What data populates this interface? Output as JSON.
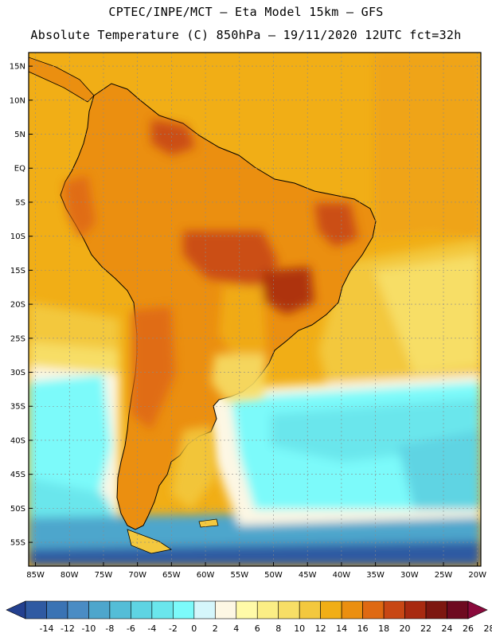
{
  "title": {
    "line1": "CPTEC/INPE/MCT –  Eta Model 15km – GFS",
    "line2": "Absolute Temperature (C) 850hPa – 19/11/2020 12UTC fct=32h"
  },
  "map": {
    "lon_range": [
      -86,
      -19.5
    ],
    "lat_range": [
      -58.5,
      17
    ],
    "lat_ticks": [
      "15N",
      "10N",
      "5N",
      "EQ",
      "5S",
      "10S",
      "15S",
      "20S",
      "25S",
      "30S",
      "35S",
      "40S",
      "45S",
      "50S",
      "55S"
    ],
    "lon_ticks": [
      "85W",
      "80W",
      "75W",
      "70W",
      "65W",
      "60W",
      "55W",
      "50W",
      "45W",
      "40W",
      "35W",
      "30W",
      "25W",
      "20W"
    ]
  },
  "colorbar": {
    "labels": [
      "-14",
      "-12",
      "-10",
      "-8",
      "-6",
      "-4",
      "-2",
      "0",
      "2",
      "4",
      "6",
      "8",
      "10",
      "12",
      "14",
      "16",
      "18",
      "20",
      "22",
      "24",
      "26",
      "28"
    ],
    "colors": [
      "#23408f",
      "#2f5aa2",
      "#3a73b4",
      "#4a8cc4",
      "#4ea6cc",
      "#54bdd7",
      "#5ed4e3",
      "#6ae6ec",
      "#7cfafa",
      "#d5f6fb",
      "#fdf7e4",
      "#fffaa8",
      "#fbee85",
      "#f7de66",
      "#f3c83e",
      "#f1ae16",
      "#eb8f10",
      "#df6912",
      "#c84714",
      "#a82a10",
      "#7d1710",
      "#6e0a20",
      "#8a0a3c"
    ],
    "units": "C"
  },
  "fields": {
    "ocean_colors": [
      "#f1ae16",
      "#f3c83e",
      "#f7de66",
      "#fdf7e4",
      "#7cfafa",
      "#6ae6ec",
      "#4ea6cc",
      "#2f5aa2"
    ],
    "land_colors": [
      "#f1ae16",
      "#eb8f10",
      "#df6912",
      "#c84714"
    ]
  }
}
